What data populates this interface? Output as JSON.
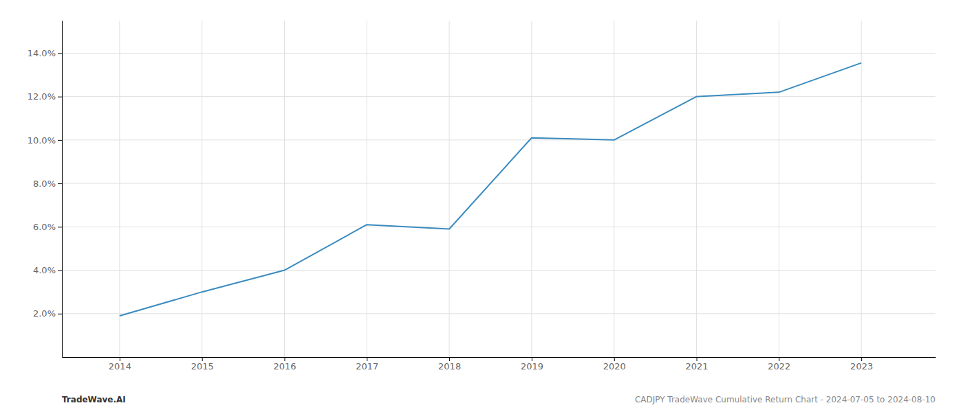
{
  "chart_data": {
    "type": "line",
    "x": [
      2014,
      2015,
      2016,
      2017,
      2018,
      2019,
      2020,
      2021,
      2022,
      2023
    ],
    "values": [
      1.9,
      3.0,
      4.0,
      6.1,
      5.9,
      10.1,
      10.0,
      12.0,
      12.2,
      13.55
    ],
    "color": "#3a8bbf",
    "xlim": [
      2013.3,
      2023.9
    ],
    "ylim": [
      0.0,
      15.5
    ],
    "xticks": [
      2014,
      2015,
      2016,
      2017,
      2018,
      2019,
      2020,
      2021,
      2022,
      2023
    ],
    "yticks": [
      {
        "value": 2.0,
        "label": "2.0%"
      },
      {
        "value": 4.0,
        "label": "4.0%"
      },
      {
        "value": 6.0,
        "label": "6.0%"
      },
      {
        "value": 8.0,
        "label": "8.0%"
      },
      {
        "value": 10.0,
        "label": "10.0%"
      },
      {
        "value": 12.0,
        "label": "12.0%"
      },
      {
        "value": 14.0,
        "label": "14.0%"
      }
    ],
    "grid": true,
    "annotations": [
      "TradeWave.AI",
      "CADJPY TradeWave Cumulative Return Chart - 2024-07-05 to 2024-08-10"
    ]
  }
}
